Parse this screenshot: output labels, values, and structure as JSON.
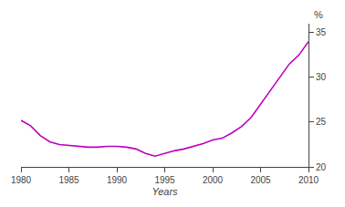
{
  "chart_data": {
    "type": "line",
    "x": [
      1980,
      1981,
      1982,
      1983,
      1984,
      1985,
      1986,
      1987,
      1988,
      1989,
      1990,
      1991,
      1992,
      1993,
      1994,
      1995,
      1996,
      1997,
      1998,
      1999,
      2000,
      2001,
      2002,
      2003,
      2004,
      2005,
      2006,
      2007,
      2008,
      2009,
      2010
    ],
    "values": [
      25.2,
      24.6,
      23.5,
      22.8,
      22.5,
      22.4,
      22.3,
      22.2,
      22.2,
      22.3,
      22.3,
      22.2,
      22.0,
      21.5,
      21.2,
      21.5,
      21.8,
      22.0,
      22.3,
      22.6,
      23.0,
      23.2,
      23.8,
      24.5,
      25.5,
      27.0,
      28.5,
      30.0,
      31.5,
      32.5,
      34.0
    ],
    "color": "#bb00bb",
    "xlabel": "Years",
    "annotations": [
      "%"
    ],
    "xlim": [
      1980,
      2010
    ],
    "xticks": [
      1980,
      1985,
      1990,
      1995,
      2000,
      2005,
      2010
    ],
    "ylim": [
      20,
      36
    ],
    "yticks": [
      20,
      25,
      30,
      35
    ],
    "grid": false
  }
}
